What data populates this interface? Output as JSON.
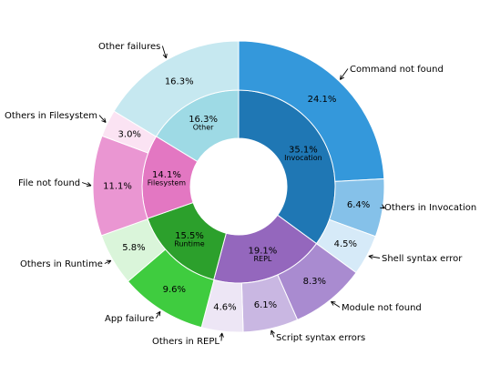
{
  "chart_data": {
    "type": "pie",
    "variant": "nested-donut",
    "title": "",
    "direction": "clockwise",
    "inner_ring": [
      {
        "name": "Invocation",
        "label": "35.1%",
        "value": 35.1,
        "color": "#1f77b4"
      },
      {
        "name": "REPL",
        "label": "19.1%",
        "value": 19.1,
        "color": "#9467bd"
      },
      {
        "name": "Runtime",
        "label": "15.5%",
        "value": 15.5,
        "color": "#2ca02c"
      },
      {
        "name": "Filesystem",
        "label": "14.1%",
        "value": 14.1,
        "color": "#e377c2"
      },
      {
        "name": "Other",
        "label": "16.3%",
        "value": 16.3,
        "color": "#9edae5"
      }
    ],
    "outer_ring": [
      {
        "name": "Command not found",
        "label": "24.1%",
        "value": 24.1,
        "color": "#3498db"
      },
      {
        "name": "Others in Invocation",
        "label": "6.4%",
        "value": 6.4,
        "color": "#85c1e9"
      },
      {
        "name": "Shell syntax error",
        "label": "4.5%",
        "value": 4.5,
        "color": "#d6eaf8"
      },
      {
        "name": "Module not found",
        "label": "8.3%",
        "value": 8.3,
        "color": "#a98bd0"
      },
      {
        "name": "Script syntax errors",
        "label": "6.1%",
        "value": 6.1,
        "color": "#c9b7e2"
      },
      {
        "name": "Others in REPL",
        "label": "4.6%",
        "value": 4.6,
        "color": "#ede6f5"
      },
      {
        "name": "App failure",
        "label": "9.6%",
        "value": 9.6,
        "color": "#3fcc3f"
      },
      {
        "name": "Others in Runtime",
        "label": "5.8%",
        "value": 5.8,
        "color": "#daf5da"
      },
      {
        "name": "File not found",
        "label": "11.1%",
        "value": 11.1,
        "color": "#ea96d2"
      },
      {
        "name": "Others in Filesystem",
        "label": "3.0%",
        "value": 3.0,
        "color": "#fbe3f3"
      },
      {
        "name": "Other failures",
        "label": "16.3%",
        "value": 16.3,
        "color": "#c6e8f0"
      }
    ]
  }
}
